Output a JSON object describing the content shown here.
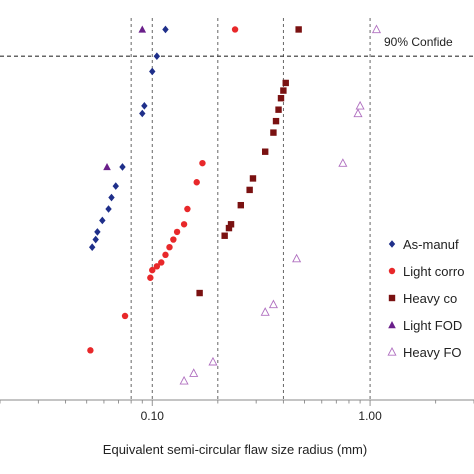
{
  "chart_data": {
    "type": "scatter",
    "title": "",
    "xlabel": "Equivalent semi-circular flaw size radius (mm)",
    "ylabel": "",
    "x_scale": "log",
    "xlim": [
      0.02,
      3.0
    ],
    "ylim": [
      0,
      100
    ],
    "x_ticks": [
      {
        "value": 0.1,
        "label": "0.10"
      },
      {
        "value": 1.0,
        "label": "1.00"
      }
    ],
    "vertical_reference_lines": [
      0.08,
      0.1,
      0.2,
      0.4,
      1.0
    ],
    "confidence_line": {
      "label": "90% Confide",
      "y": 90
    },
    "legend_position": "right",
    "series": [
      {
        "name": "As-manuf",
        "marker": "diamond",
        "color": "#1f2f8a",
        "points": [
          [
            0.115,
            97
          ],
          [
            0.105,
            90
          ],
          [
            0.1,
            86
          ],
          [
            0.092,
            77
          ],
          [
            0.09,
            75
          ],
          [
            0.073,
            61
          ],
          [
            0.068,
            56
          ],
          [
            0.065,
            53
          ],
          [
            0.063,
            50
          ],
          [
            0.059,
            47
          ],
          [
            0.056,
            44
          ],
          [
            0.055,
            42
          ],
          [
            0.053,
            40
          ]
        ]
      },
      {
        "name": "Light corro",
        "marker": "circle",
        "color": "#e8282a",
        "points": [
          [
            0.24,
            97
          ],
          [
            0.17,
            62
          ],
          [
            0.16,
            57
          ],
          [
            0.145,
            50
          ],
          [
            0.14,
            46
          ],
          [
            0.13,
            44
          ],
          [
            0.125,
            42
          ],
          [
            0.12,
            40
          ],
          [
            0.115,
            38
          ],
          [
            0.11,
            36
          ],
          [
            0.105,
            35
          ],
          [
            0.1,
            34
          ],
          [
            0.098,
            32
          ],
          [
            0.075,
            22
          ],
          [
            0.052,
            13
          ]
        ]
      },
      {
        "name": "Heavy co",
        "marker": "square",
        "color": "#7a1111",
        "points": [
          [
            0.47,
            97
          ],
          [
            0.41,
            83
          ],
          [
            0.4,
            81
          ],
          [
            0.39,
            79
          ],
          [
            0.38,
            76
          ],
          [
            0.37,
            73
          ],
          [
            0.36,
            70
          ],
          [
            0.33,
            65
          ],
          [
            0.29,
            58
          ],
          [
            0.28,
            55
          ],
          [
            0.255,
            51
          ],
          [
            0.23,
            46
          ],
          [
            0.225,
            45
          ],
          [
            0.215,
            43
          ],
          [
            0.165,
            28
          ]
        ]
      },
      {
        "name": "Light FOD",
        "marker": "triangle-filled",
        "color": "#6a1f8a",
        "points": [
          [
            0.09,
            97
          ],
          [
            0.062,
            61
          ]
        ]
      },
      {
        "name": "Heavy FO",
        "marker": "triangle-open",
        "color": "#b070c0",
        "points": [
          [
            1.07,
            97
          ],
          [
            0.9,
            77
          ],
          [
            0.88,
            75
          ],
          [
            0.75,
            62
          ],
          [
            0.46,
            37
          ],
          [
            0.36,
            25
          ],
          [
            0.33,
            23
          ],
          [
            0.19,
            10
          ],
          [
            0.155,
            7
          ],
          [
            0.14,
            5
          ]
        ]
      }
    ]
  }
}
